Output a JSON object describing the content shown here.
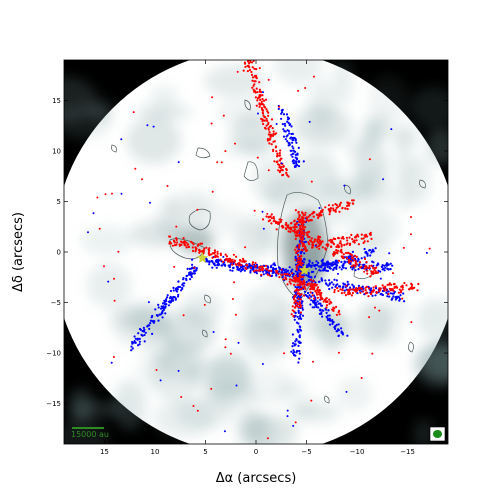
{
  "chart_data": {
    "type": "scatter",
    "title": "",
    "xlabel": "Δα (arcsecs)",
    "ylabel": "Δδ (arcsecs)",
    "xlim": [
      19,
      -19
    ],
    "ylim": [
      -19,
      19
    ],
    "xticks": [
      15,
      10,
      5,
      0,
      -5,
      -10,
      -15
    ],
    "xtick_labels": [
      "15",
      "10",
      "5",
      "0",
      "−5",
      "−10",
      "−15"
    ],
    "yticks": [
      15,
      10,
      5,
      0,
      -5,
      -10,
      -15
    ],
    "ytick_labels": [
      "15",
      "10",
      "5",
      "0",
      "−5",
      "−10",
      "−15"
    ],
    "scale_bar_label": "15000 au",
    "grid": false,
    "background_map": "grayscale continuum emission inside a circular field of view; black outside",
    "colors": {
      "red": "#ff0000",
      "blue": "#0000ff",
      "star": "#cfd33a",
      "scale": "#2e8b22",
      "contour": "#4d5a5a"
    },
    "sources": [
      {
        "x": 5.3,
        "y": -0.6
      },
      {
        "x": -4.8,
        "y": -1.8
      }
    ],
    "red_streams": [
      {
        "from": [
          0.8,
          19
        ],
        "to": [
          -2.8,
          7.5
        ]
      },
      {
        "from": [
          -1.0,
          3.5
        ],
        "to": [
          -12.3,
          -2.2
        ]
      },
      {
        "from": [
          -4.5,
          4.2
        ],
        "to": [
          -4.0,
          -6.2
        ]
      },
      {
        "from": [
          -3.0,
          2.5
        ],
        "to": [
          -9.5,
          5.0
        ]
      },
      {
        "from": [
          -8.0,
          -4.0
        ],
        "to": [
          -15.8,
          -3.5
        ]
      },
      {
        "from": [
          8.5,
          1.2
        ],
        "to": [
          -6.0,
          -3.5
        ]
      },
      {
        "from": [
          -5.0,
          -3.0
        ],
        "to": [
          -8.0,
          -6.0
        ]
      },
      {
        "from": [
          -4.5,
          0.5
        ],
        "to": [
          -11.5,
          1.5
        ]
      }
    ],
    "blue_streams": [
      {
        "from": [
          12.3,
          -9.5
        ],
        "to": [
          5.8,
          -1.2
        ]
      },
      {
        "from": [
          5.0,
          -0.8
        ],
        "to": [
          -14.5,
          -4.4
        ]
      },
      {
        "from": [
          -2.5,
          14.2
        ],
        "to": [
          -4.2,
          8.5
        ]
      },
      {
        "from": [
          -5.0,
          -2.0
        ],
        "to": [
          -11.5,
          0.0
        ]
      },
      {
        "from": [
          -4.5,
          3.0
        ],
        "to": [
          -4.0,
          -10.5
        ]
      },
      {
        "from": [
          -4.2,
          -1.2
        ],
        "to": [
          -13.5,
          -1.5
        ]
      },
      {
        "from": [
          -5.0,
          -4.0
        ],
        "to": [
          -9.0,
          -8.5
        ]
      },
      {
        "from": [
          -4.8,
          -2.0
        ],
        "to": [
          1.5,
          -1.5
        ]
      }
    ]
  }
}
